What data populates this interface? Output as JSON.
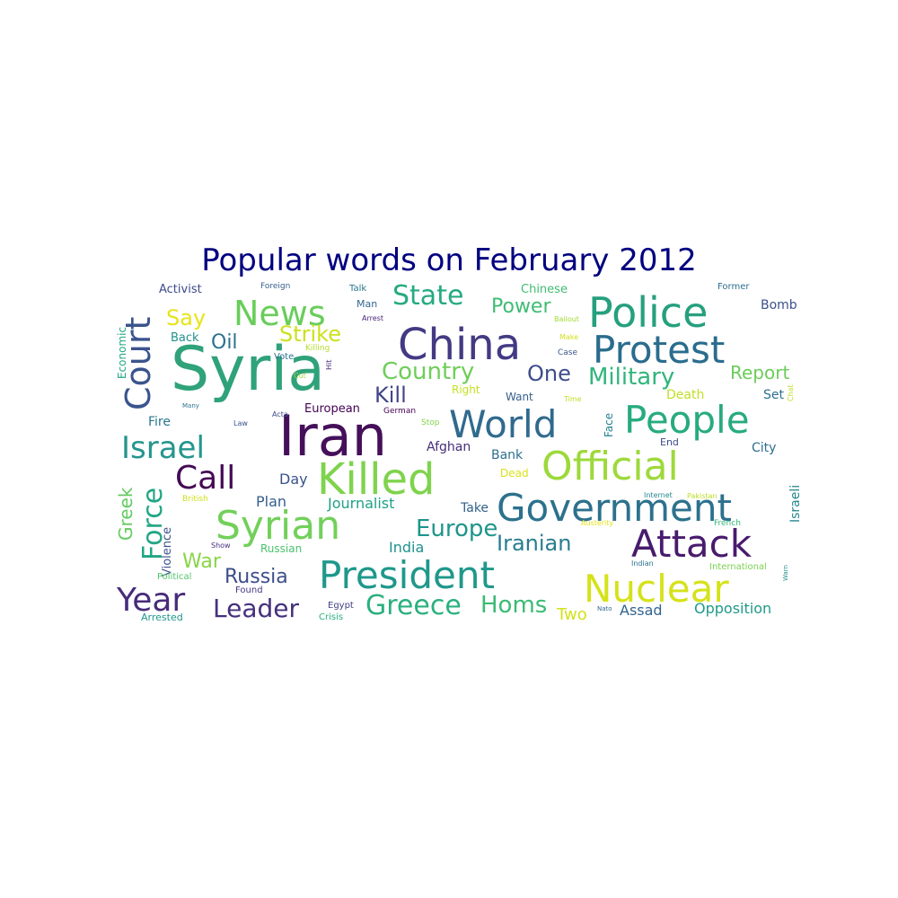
{
  "title": "Popular words on February 2012",
  "words": [
    {
      "text": "Syria",
      "color": "#2fa27a"
    },
    {
      "text": "Iran",
      "color": "#45105a"
    },
    {
      "text": "China",
      "color": "#433a83"
    },
    {
      "text": "Police",
      "color": "#26a07e"
    },
    {
      "text": "Protest",
      "color": "#2a6c8d"
    },
    {
      "text": "Killed",
      "color": "#7fd34d"
    },
    {
      "text": "World",
      "color": "#306a8e"
    },
    {
      "text": "People",
      "color": "#27ab7e"
    },
    {
      "text": "Official",
      "color": "#9dd93b"
    },
    {
      "text": "Government",
      "color": "#2c718d"
    },
    {
      "text": "Syrian",
      "color": "#72d05a"
    },
    {
      "text": "President",
      "color": "#1f988b"
    },
    {
      "text": "Attack",
      "color": "#481b6d"
    },
    {
      "text": "Nuclear",
      "color": "#d5e21a"
    },
    {
      "text": "Court",
      "color": "#3a548c"
    },
    {
      "text": "News",
      "color": "#69cd5b"
    },
    {
      "text": "Israel",
      "color": "#24968d"
    },
    {
      "text": "Call",
      "color": "#440a54"
    },
    {
      "text": "Year",
      "color": "#472b7a"
    },
    {
      "text": "Leader",
      "color": "#46307d"
    },
    {
      "text": "Greece",
      "color": "#2bb07f"
    },
    {
      "text": "Homs",
      "color": "#3bbb75"
    },
    {
      "text": "Country",
      "color": "#6ece58"
    },
    {
      "text": "State",
      "color": "#26aa81"
    },
    {
      "text": "Military",
      "color": "#31b57b"
    },
    {
      "text": "Force",
      "color": "#21a685"
    },
    {
      "text": "Europe",
      "color": "#1f958b"
    },
    {
      "text": "Iranian",
      "color": "#287d8e"
    },
    {
      "text": "Russia",
      "color": "#3d4e8a"
    },
    {
      "text": "Strike",
      "color": "#cde11d"
    },
    {
      "text": "Power",
      "color": "#3fbc73"
    },
    {
      "text": "One",
      "color": "#3e4c8a"
    },
    {
      "text": "Say",
      "color": "#e7e419"
    },
    {
      "text": "Kill",
      "color": "#414487"
    },
    {
      "text": "Oil",
      "color": "#2c728e"
    },
    {
      "text": "Report",
      "color": "#6ccd5a"
    },
    {
      "text": "War",
      "color": "#89d548"
    },
    {
      "text": "Greek",
      "color": "#63cb5f"
    },
    {
      "text": "Journalist",
      "color": "#1fa187"
    },
    {
      "text": "Two",
      "color": "#d2e21b"
    },
    {
      "text": "Assad",
      "color": "#32648e"
    },
    {
      "text": "Opposition",
      "color": "#1f9a8a"
    },
    {
      "text": "Day",
      "color": "#3a538b"
    },
    {
      "text": "Plan",
      "color": "#355e8d"
    },
    {
      "text": "India",
      "color": "#20928c"
    },
    {
      "text": "Afghan",
      "color": "#472d7b"
    },
    {
      "text": "Bank",
      "color": "#2e6f8e"
    },
    {
      "text": "Take",
      "color": "#33628d"
    },
    {
      "text": "Death",
      "color": "#c0df25"
    },
    {
      "text": "Set",
      "color": "#2d718e"
    },
    {
      "text": "City",
      "color": "#2e6e8e"
    },
    {
      "text": "Israeli",
      "color": "#24868e"
    },
    {
      "text": "Bomb",
      "color": "#3b518b"
    },
    {
      "text": "Chinese",
      "color": "#3fbc73"
    },
    {
      "text": "Activist",
      "color": "#3e4a89"
    },
    {
      "text": "Back",
      "color": "#21918c"
    },
    {
      "text": "Economic",
      "color": "#22a884"
    },
    {
      "text": "Fire",
      "color": "#2a768e"
    },
    {
      "text": "Violence",
      "color": "#3b518b"
    },
    {
      "text": "Right",
      "color": "#c5e021"
    },
    {
      "text": "Want",
      "color": "#355f8d"
    },
    {
      "text": "Face",
      "color": "#26818e"
    },
    {
      "text": "End",
      "color": "#3e4989"
    },
    {
      "text": "European",
      "color": "#440154"
    },
    {
      "text": "Dead",
      "color": "#d8e219"
    },
    {
      "text": "Russian",
      "color": "#4ac16d"
    },
    {
      "text": "Talk",
      "color": "#2a788e"
    },
    {
      "text": "Man",
      "color": "#31678e"
    },
    {
      "text": "Arrested",
      "color": "#1f968b"
    },
    {
      "text": "Egypt",
      "color": "#424086"
    },
    {
      "text": "Crisis",
      "color": "#29af7f"
    },
    {
      "text": "Found",
      "color": "#443a83"
    },
    {
      "text": "Political",
      "color": "#52c569"
    },
    {
      "text": "Vote",
      "color": "#2c728e"
    },
    {
      "text": "Killing",
      "color": "#b5de2b"
    },
    {
      "text": "Arrest",
      "color": "#482475"
    },
    {
      "text": "Bailout",
      "color": "#a2da37"
    },
    {
      "text": "Make",
      "color": "#d0e11c"
    },
    {
      "text": "Case",
      "color": "#39558c"
    },
    {
      "text": "Time",
      "color": "#bddf26"
    },
    {
      "text": "Former",
      "color": "#2d708e"
    },
    {
      "text": "Foreign",
      "color": "#355f8d"
    },
    {
      "text": "Chat",
      "color": "#bddf26"
    },
    {
      "text": "German",
      "color": "#440154"
    },
    {
      "text": "Stop",
      "color": "#84d44b"
    },
    {
      "text": "British",
      "color": "#cde11d"
    },
    {
      "text": "Internet",
      "color": "#23888e"
    },
    {
      "text": "Pakistan",
      "color": "#bddf26"
    },
    {
      "text": "Austerity",
      "color": "#e5e419"
    },
    {
      "text": "French",
      "color": "#35b779"
    },
    {
      "text": "International",
      "color": "#7ad151"
    },
    {
      "text": "Indian",
      "color": "#2c728e"
    },
    {
      "text": "Nato",
      "color": "#31688e"
    },
    {
      "text": "Warn",
      "color": "#21918c"
    },
    {
      "text": "Show",
      "color": "#472f7d"
    },
    {
      "text": "Law",
      "color": "#3b528b"
    },
    {
      "text": "Acta",
      "color": "#3e4989"
    },
    {
      "text": "Many",
      "color": "#2c728e"
    },
    {
      "text": "Cut",
      "color": "#a5db36"
    },
    {
      "text": "Hit",
      "color": "#482878"
    }
  ]
}
